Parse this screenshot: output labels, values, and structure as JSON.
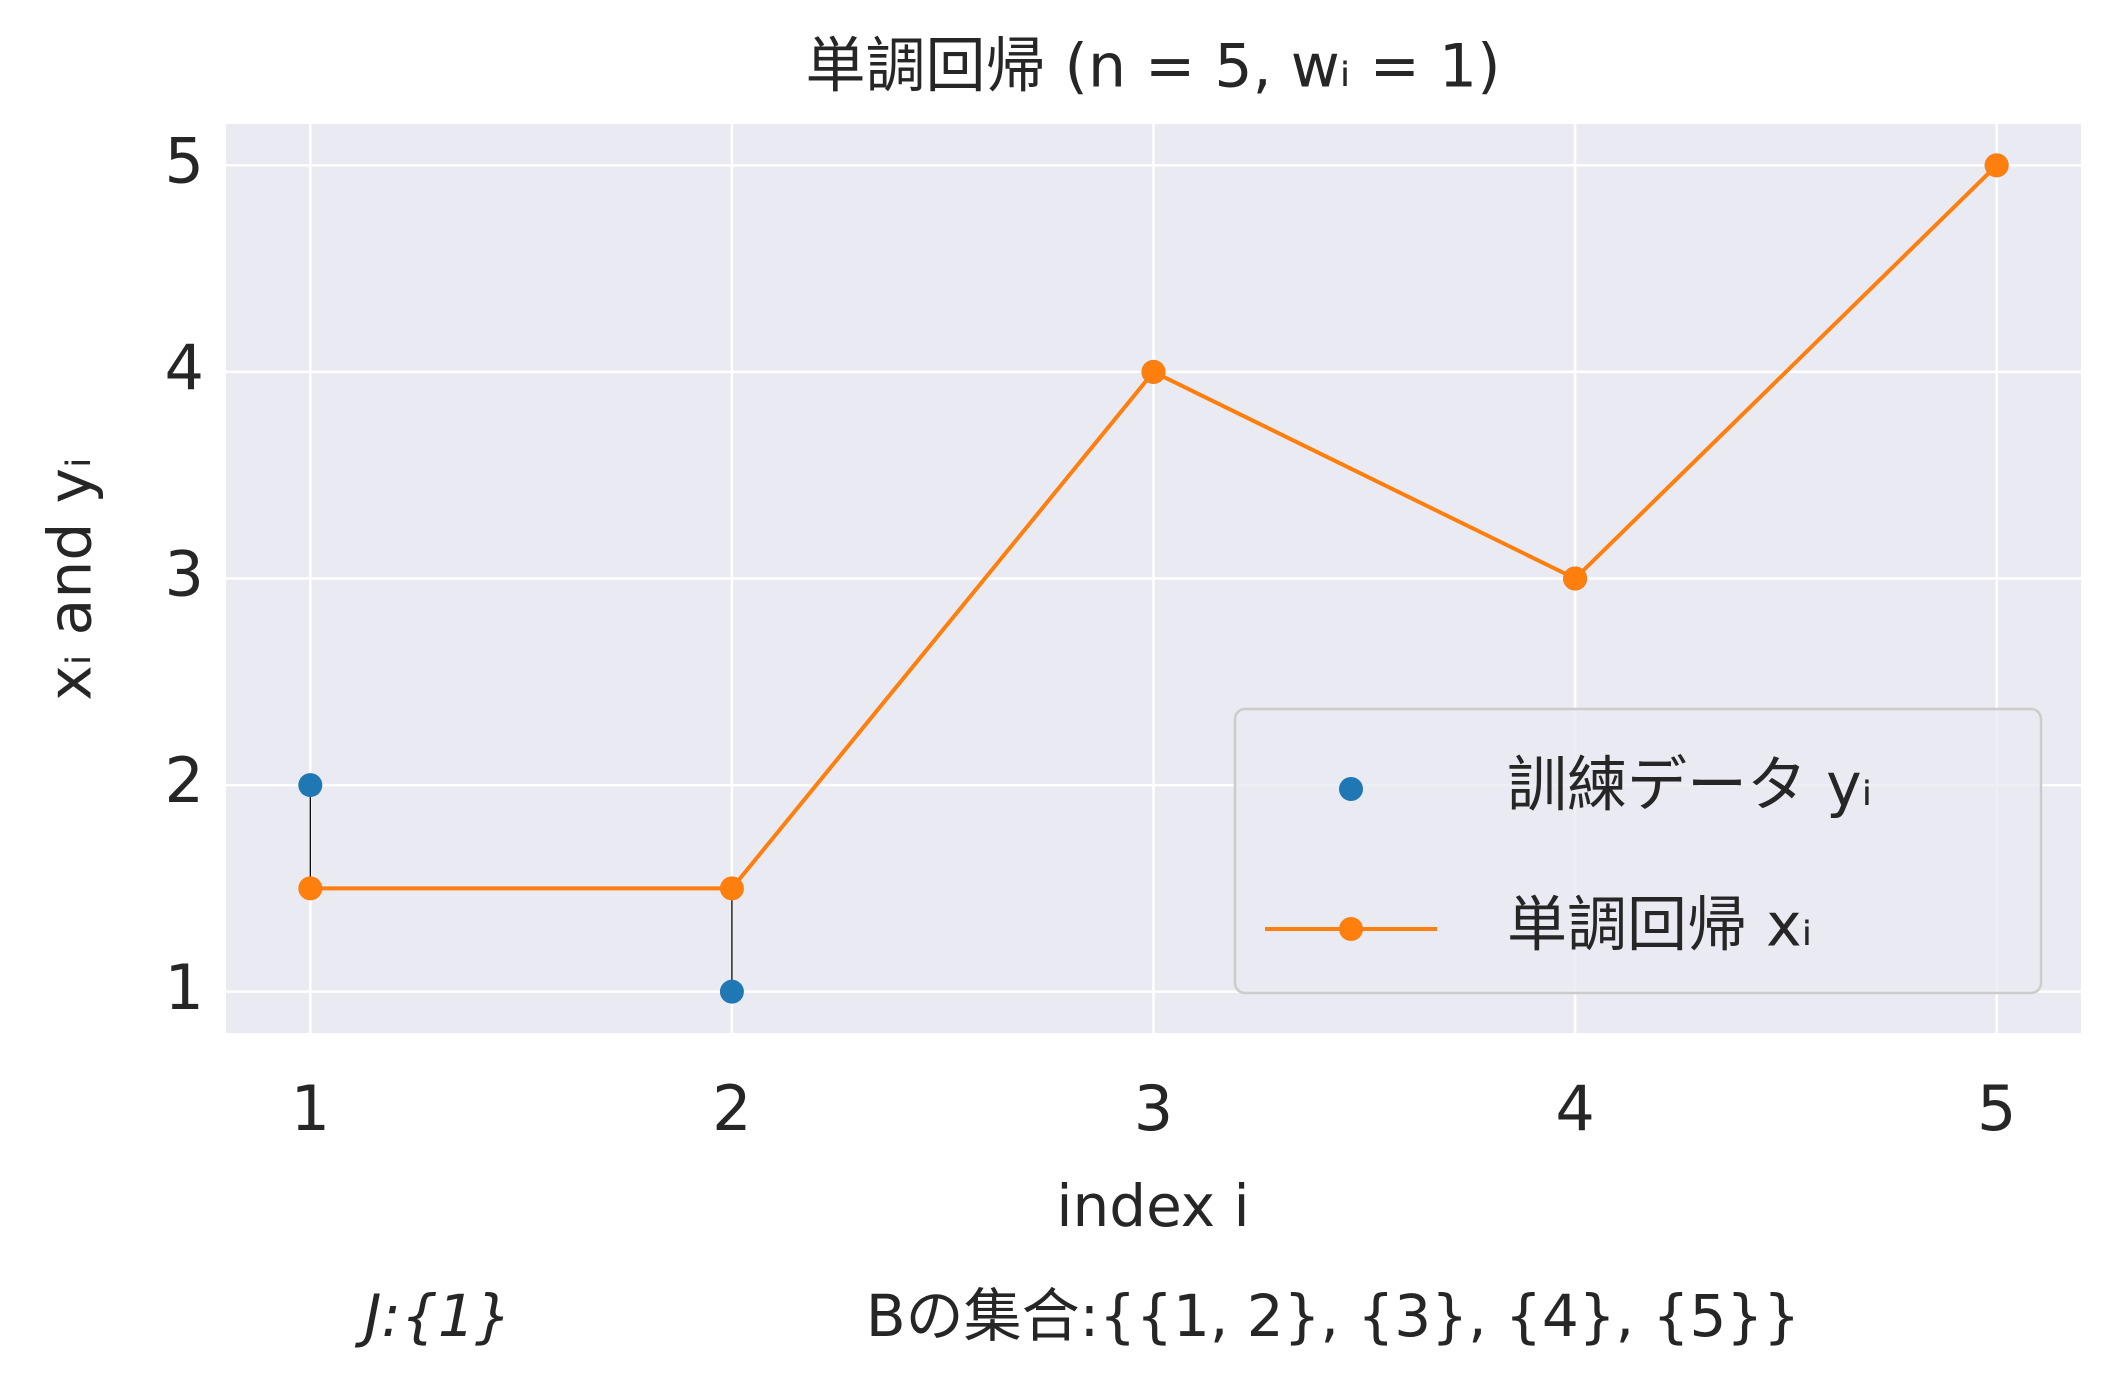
{
  "chart_data": {
    "type": "line",
    "title": "単調回帰 (n = 5, wᵢ = 1)",
    "x_label": "index i",
    "y_label": "xᵢ and yᵢ",
    "annotations": [
      "J:{1}",
      "Bの集合:{{1, 2}, {3}, {4}, {5}}"
    ],
    "x": [
      1,
      2,
      3,
      4,
      5
    ],
    "series": [
      {
        "name": "訓練データ yᵢ",
        "color": "#1f77b4",
        "style": "markers",
        "values": [
          2,
          1,
          4,
          3,
          5
        ]
      },
      {
        "name": "単調回帰 xᵢ",
        "color": "#ff7f0e",
        "style": "line-markers",
        "values": [
          1.5,
          1.5,
          4,
          3,
          5
        ]
      }
    ],
    "xlim": [
      0.8,
      5.2
    ],
    "ylim": [
      0.8,
      5.2
    ],
    "xticks": [
      1,
      2,
      3,
      4,
      5
    ],
    "yticks": [
      1,
      2,
      3,
      4,
      5
    ],
    "grid": true,
    "legend": "lower right"
  }
}
